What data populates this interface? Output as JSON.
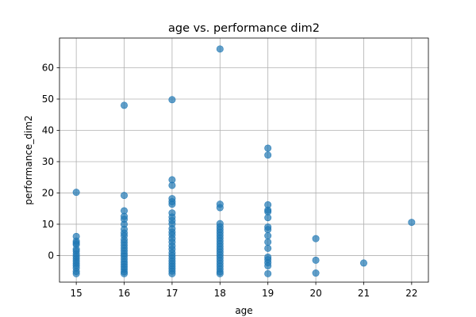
{
  "chart_data": {
    "type": "scatter",
    "title": "age vs. performance dim2",
    "xlabel": "age",
    "ylabel": "performance_dim2",
    "xlim": [
      14.65,
      22.35
    ],
    "ylim": [
      -8.5,
      69.5
    ],
    "xticks": [
      15,
      16,
      17,
      18,
      19,
      20,
      21,
      22
    ],
    "yticks": [
      0,
      10,
      20,
      30,
      40,
      50,
      60
    ],
    "grid": true,
    "marker_color": "#1f77b4",
    "marker_alpha": 0.7,
    "series": [
      {
        "points": [
          [
            15,
            20.2
          ],
          [
            15,
            6.1
          ],
          [
            15,
            4.6
          ],
          [
            15,
            4.0
          ],
          [
            15,
            3.5
          ],
          [
            15,
            2.0
          ],
          [
            15,
            1.4
          ],
          [
            15,
            0.5
          ],
          [
            15,
            -0.3
          ],
          [
            15,
            -1.0
          ],
          [
            15,
            -1.8
          ],
          [
            15,
            -2.5
          ],
          [
            15,
            -3.2
          ],
          [
            15,
            -4.0
          ],
          [
            15,
            -5.1
          ],
          [
            15,
            -5.8
          ],
          [
            16,
            48.0
          ],
          [
            16,
            19.2
          ],
          [
            16,
            14.3
          ],
          [
            16,
            12.5
          ],
          [
            16,
            11.6
          ],
          [
            16,
            10.0
          ],
          [
            16,
            8.4
          ],
          [
            16,
            7.2
          ],
          [
            16,
            6.3
          ],
          [
            16,
            5.1
          ],
          [
            16,
            4.2
          ],
          [
            16,
            3.3
          ],
          [
            16,
            2.4
          ],
          [
            16,
            1.5
          ],
          [
            16,
            0.6
          ],
          [
            16,
            -0.2
          ],
          [
            16,
            -1.1
          ],
          [
            16,
            -2.0
          ],
          [
            16,
            -2.8
          ],
          [
            16,
            -3.6
          ],
          [
            16,
            -4.4
          ],
          [
            16,
            -5.2
          ],
          [
            16,
            -5.8
          ],
          [
            17,
            49.8
          ],
          [
            17,
            24.2
          ],
          [
            17,
            22.4
          ],
          [
            17,
            18.2
          ],
          [
            17,
            17.2
          ],
          [
            17,
            16.4
          ],
          [
            17,
            13.6
          ],
          [
            17,
            12.3
          ],
          [
            17,
            11.2
          ],
          [
            17,
            10.1
          ],
          [
            17,
            8.6
          ],
          [
            17,
            7.5
          ],
          [
            17,
            6.6
          ],
          [
            17,
            5.4
          ],
          [
            17,
            4.3
          ],
          [
            17,
            3.1
          ],
          [
            17,
            2.0
          ],
          [
            17,
            0.9
          ],
          [
            17,
            0.0
          ],
          [
            17,
            -0.9
          ],
          [
            17,
            -1.8
          ],
          [
            17,
            -2.6
          ],
          [
            17,
            -3.4
          ],
          [
            17,
            -4.2
          ],
          [
            17,
            -5.0
          ],
          [
            17,
            -5.8
          ],
          [
            18,
            66.0
          ],
          [
            18,
            16.4
          ],
          [
            18,
            15.3
          ],
          [
            18,
            10.2
          ],
          [
            18,
            9.2
          ],
          [
            18,
            8.3
          ],
          [
            18,
            7.4
          ],
          [
            18,
            6.5
          ],
          [
            18,
            5.6
          ],
          [
            18,
            4.7
          ],
          [
            18,
            3.8
          ],
          [
            18,
            2.9
          ],
          [
            18,
            2.0
          ],
          [
            18,
            1.1
          ],
          [
            18,
            0.2
          ],
          [
            18,
            -0.7
          ],
          [
            18,
            -1.6
          ],
          [
            18,
            -2.5
          ],
          [
            18,
            -3.4
          ],
          [
            18,
            -4.3
          ],
          [
            18,
            -5.2
          ],
          [
            18,
            -5.8
          ],
          [
            19,
            34.3
          ],
          [
            19,
            32.1
          ],
          [
            19,
            16.2
          ],
          [
            19,
            14.5
          ],
          [
            19,
            14.0
          ],
          [
            19,
            12.1
          ],
          [
            19,
            9.1
          ],
          [
            19,
            8.3
          ],
          [
            19,
            6.3
          ],
          [
            19,
            4.3
          ],
          [
            19,
            2.3
          ],
          [
            19,
            -0.5
          ],
          [
            19,
            -1.3
          ],
          [
            19,
            -2.3
          ],
          [
            19,
            -3.3
          ],
          [
            19,
            -5.8
          ],
          [
            20,
            5.4
          ],
          [
            20,
            -1.5
          ],
          [
            20,
            -5.6
          ],
          [
            21,
            -2.4
          ],
          [
            22,
            10.6
          ]
        ]
      }
    ]
  }
}
